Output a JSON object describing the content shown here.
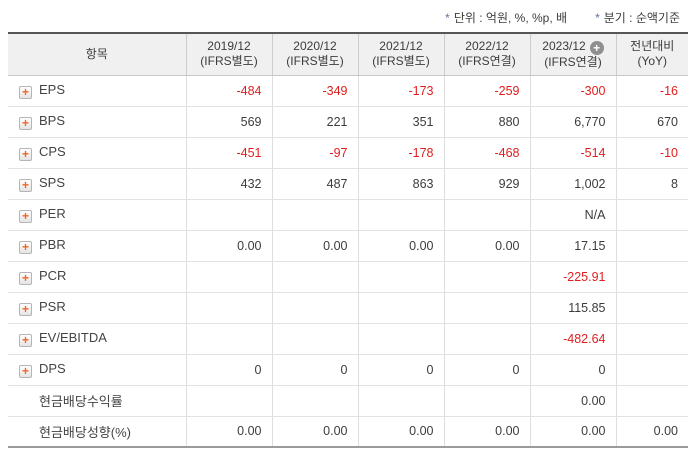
{
  "colors": {
    "negative_red": "#e01e1e",
    "accent_orange": "#f26522",
    "note_marker_blue": "#5b74a8",
    "header_bg": "#f0f0f0",
    "top_border": "#565656"
  },
  "notes": [
    {
      "marker": "*",
      "text": "단위 : 억원, %, %p, 배"
    },
    {
      "marker": "*",
      "text": "분기 : 순액기준"
    }
  ],
  "table": {
    "columns": [
      {
        "line1": "항목",
        "line2": ""
      },
      {
        "line1": "2019/12",
        "line2": "(IFRS별도)"
      },
      {
        "line1": "2020/12",
        "line2": "(IFRS별도)"
      },
      {
        "line1": "2021/12",
        "line2": "(IFRS별도)"
      },
      {
        "line1": "2022/12",
        "line2": "(IFRS연결)"
      },
      {
        "line1": "2023/12",
        "line2": "(IFRS연결)",
        "add_icon": "+"
      },
      {
        "line1": "전년대비",
        "line2": "(YoY)"
      }
    ],
    "rows": [
      {
        "label": "EPS",
        "has_icon": true,
        "values": [
          "-484",
          "-349",
          "-173",
          "-259",
          "-300",
          "-16"
        ]
      },
      {
        "label": "BPS",
        "has_icon": true,
        "values": [
          "569",
          "221",
          "351",
          "880",
          "6,770",
          "670"
        ]
      },
      {
        "label": "CPS",
        "has_icon": true,
        "values": [
          "-451",
          "-97",
          "-178",
          "-468",
          "-514",
          "-10"
        ]
      },
      {
        "label": "SPS",
        "has_icon": true,
        "values": [
          "432",
          "487",
          "863",
          "929",
          "1,002",
          "8"
        ]
      },
      {
        "label": "PER",
        "has_icon": true,
        "values": [
          "",
          "",
          "",
          "",
          "N/A",
          ""
        ]
      },
      {
        "label": "PBR",
        "has_icon": true,
        "values": [
          "0.00",
          "0.00",
          "0.00",
          "0.00",
          "17.15",
          ""
        ]
      },
      {
        "label": "PCR",
        "has_icon": true,
        "values": [
          "",
          "",
          "",
          "",
          "-225.91",
          ""
        ]
      },
      {
        "label": "PSR",
        "has_icon": true,
        "values": [
          "",
          "",
          "",
          "",
          "115.85",
          ""
        ]
      },
      {
        "label": "EV/EBITDA",
        "has_icon": true,
        "values": [
          "",
          "",
          "",
          "",
          "-482.64",
          ""
        ]
      },
      {
        "label": "DPS",
        "has_icon": true,
        "values": [
          "0",
          "0",
          "0",
          "0",
          "0",
          ""
        ]
      },
      {
        "label": "현금배당수익률",
        "has_icon": false,
        "values": [
          "",
          "",
          "",
          "",
          "0.00",
          ""
        ]
      },
      {
        "label": "현금배당성향(%)",
        "has_icon": false,
        "values": [
          "0.00",
          "0.00",
          "0.00",
          "0.00",
          "0.00",
          "0.00"
        ]
      }
    ]
  }
}
